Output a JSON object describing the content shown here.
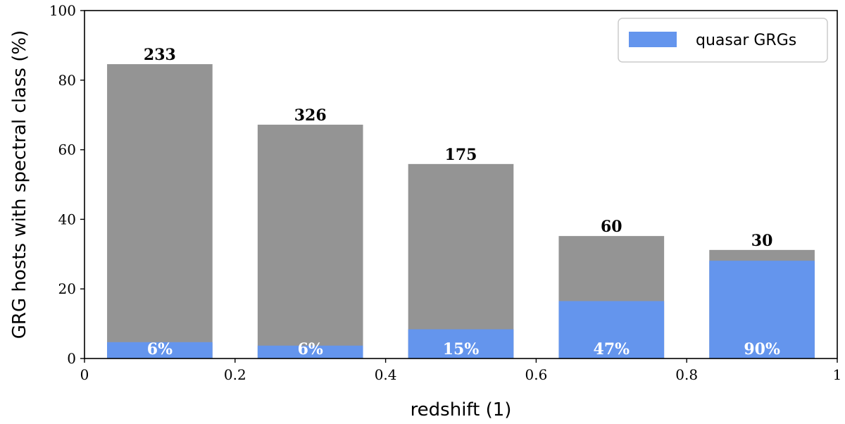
{
  "chart_data": {
    "type": "bar",
    "stacked": true,
    "xlabel": "redshift (1)",
    "ylabel": "GRG hosts with spectral class (%)",
    "xlim": [
      0,
      1
    ],
    "ylim": [
      0,
      100
    ],
    "xticks": [
      "0",
      "0.2",
      "0.4",
      "0.6",
      "0.8",
      "1"
    ],
    "xtick_values": [
      0,
      0.2,
      0.4,
      0.6,
      0.8,
      1
    ],
    "yticks": [
      "0",
      "20",
      "40",
      "60",
      "80",
      "100"
    ],
    "ytick_values": [
      0,
      20,
      40,
      60,
      80,
      100
    ],
    "grid": false,
    "legend": {
      "position": "top-right",
      "entries": [
        "quasar GRGs"
      ]
    },
    "bins": [
      {
        "x_start": 0.0,
        "x_end": 0.2,
        "total": 84.6,
        "quasar": 4.7,
        "count": "233",
        "percent": "6%"
      },
      {
        "x_start": 0.2,
        "x_end": 0.4,
        "total": 67.2,
        "quasar": 3.7,
        "count": "326",
        "percent": "6%"
      },
      {
        "x_start": 0.4,
        "x_end": 0.6,
        "total": 55.9,
        "quasar": 8.4,
        "count": "175",
        "percent": "15%"
      },
      {
        "x_start": 0.6,
        "x_end": 0.8,
        "total": 35.2,
        "quasar": 16.5,
        "count": "60",
        "percent": "47%"
      },
      {
        "x_start": 0.8,
        "x_end": 1.0,
        "total": 31.2,
        "quasar": 28.1,
        "count": "30",
        "percent": "90%"
      }
    ],
    "series": [
      {
        "name": "",
        "color": "#949494"
      },
      {
        "name": "quasar GRGs",
        "color": "#6495ed"
      }
    ]
  }
}
